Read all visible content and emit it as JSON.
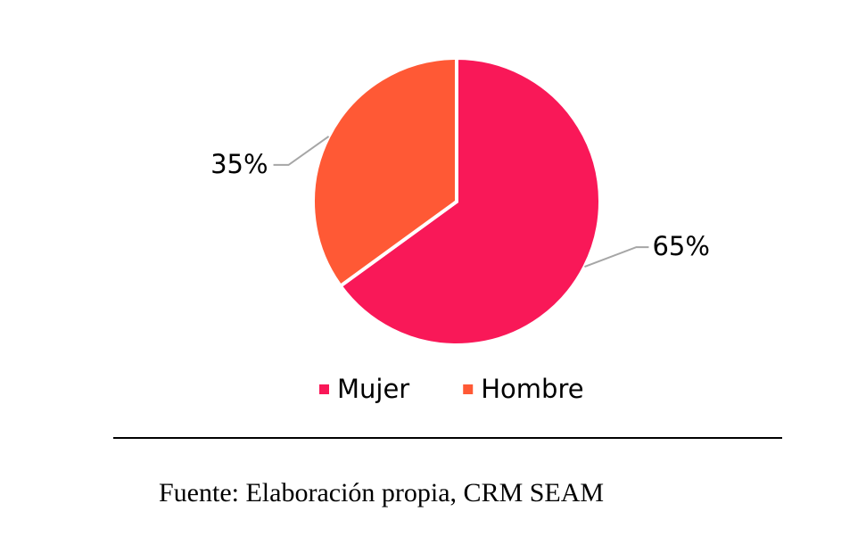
{
  "chart_data": {
    "type": "pie",
    "categories": [
      "Mujer",
      "Hombre"
    ],
    "values": [
      65,
      35
    ],
    "value_labels": [
      "65%",
      "35%"
    ],
    "colors": [
      "#f91858",
      "#ff5935"
    ],
    "legend": "bottom",
    "source": "Fuente: Elaboración propia, CRM SEAM"
  }
}
